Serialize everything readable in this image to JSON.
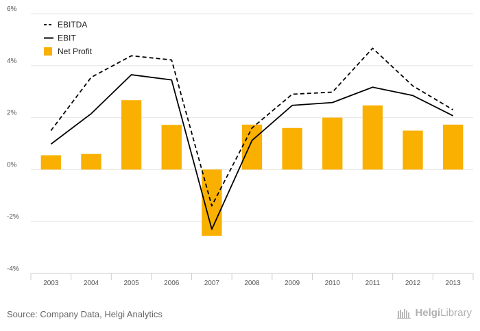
{
  "chart_data": {
    "type": "bar",
    "categories": [
      "2003",
      "2004",
      "2005",
      "2006",
      "2007",
      "2008",
      "2009",
      "2010",
      "2011",
      "2012",
      "2013"
    ],
    "ylim": [
      -4,
      6
    ],
    "yticks": [
      -4,
      -2,
      0,
      2,
      4,
      6
    ],
    "ytick_labels": [
      "-4%",
      "-2%",
      "0%",
      "2%",
      "4%",
      "6%"
    ],
    "grid": true,
    "legend_position": "top-left",
    "series": [
      {
        "name": "EBITDA",
        "type": "line",
        "style": "dashed",
        "color": "#000000",
        "values": [
          1.5,
          3.55,
          4.38,
          4.22,
          -1.4,
          1.6,
          2.9,
          2.98,
          4.67,
          3.22,
          2.3
        ]
      },
      {
        "name": "EBIT",
        "type": "line",
        "style": "solid",
        "color": "#000000",
        "values": [
          0.98,
          2.15,
          3.65,
          3.45,
          -2.3,
          1.12,
          2.47,
          2.58,
          3.17,
          2.85,
          2.07
        ]
      },
      {
        "name": "Net Profit",
        "type": "bar",
        "color": "#F9B000",
        "values": [
          0.55,
          0.6,
          2.67,
          1.72,
          -2.55,
          1.73,
          1.6,
          2.0,
          2.47,
          1.5,
          1.73
        ]
      }
    ]
  },
  "footer": {
    "source": "Source: Company Data, Helgi Analytics",
    "brand_part1": "Helgi",
    "brand_part2": "Library"
  }
}
